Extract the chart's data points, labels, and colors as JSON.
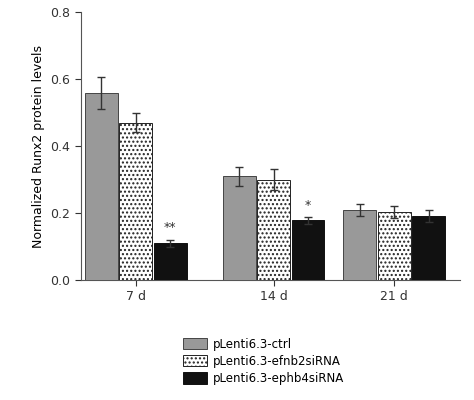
{
  "groups": [
    "7 d",
    "14 d",
    "21 d"
  ],
  "series": [
    {
      "label": "pLenti6.3-ctrl",
      "color": "#999999",
      "hatch": "",
      "edge_color": "#444444",
      "values": [
        0.558,
        0.31,
        0.21
      ],
      "errors": [
        0.048,
        0.028,
        0.018
      ]
    },
    {
      "label": "pLenti6.3-efnb2siRNA",
      "color": "#ffffff",
      "hatch": "....",
      "edge_color": "#222222",
      "values": [
        0.47,
        0.3,
        0.202
      ],
      "errors": [
        0.028,
        0.03,
        0.018
      ]
    },
    {
      "label": "pLenti6.3-ephb4siRNA",
      "color": "#111111",
      "hatch": "",
      "edge_color": "#111111",
      "values": [
        0.11,
        0.178,
        0.19
      ],
      "errors": [
        0.01,
        0.01,
        0.018
      ]
    }
  ],
  "annotations": [
    {
      "group": 0,
      "series": 2,
      "text": "**"
    },
    {
      "group": 1,
      "series": 2,
      "text": "*"
    }
  ],
  "ylabel": "Normalized Runx2 protein levels",
  "ylim": [
    0.0,
    0.8
  ],
  "yticks": [
    0.0,
    0.2,
    0.4,
    0.6,
    0.8
  ],
  "bar_width": 0.2,
  "figsize": [
    4.74,
    4.0
  ],
  "dpi": 100,
  "background_color": "#ffffff",
  "spine_color": "#555555",
  "tick_color": "#333333",
  "label_fontsize": 9,
  "tick_fontsize": 9,
  "legend_fontsize": 8.5,
  "group_centers": [
    0.38,
    1.18,
    1.88
  ]
}
